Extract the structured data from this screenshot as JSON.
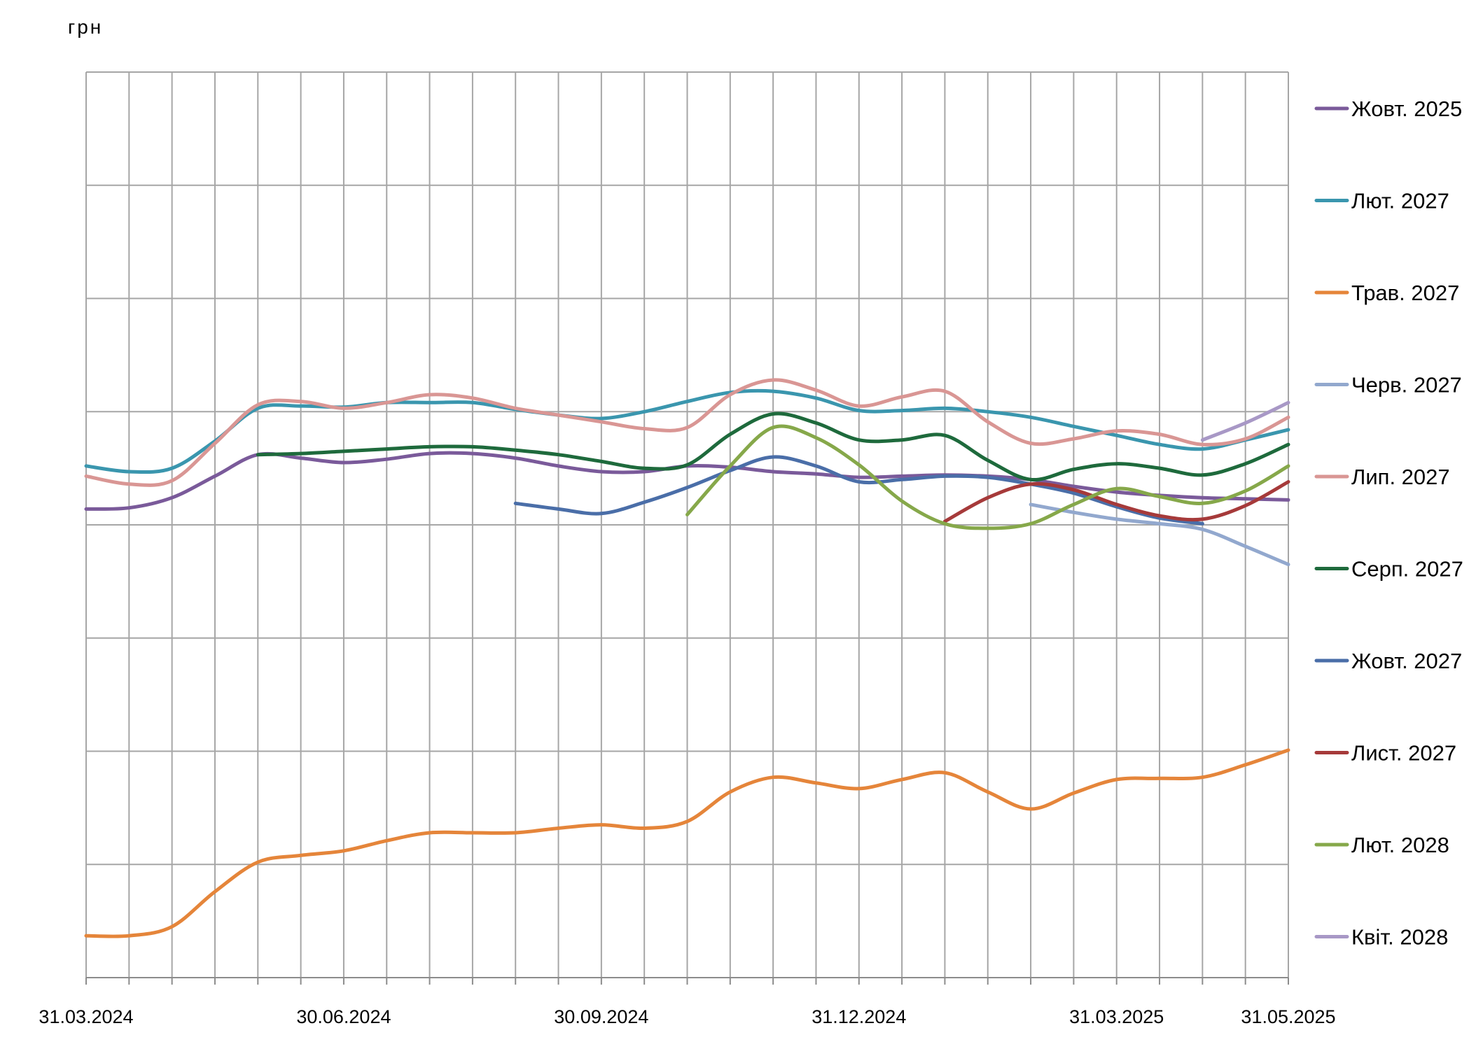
{
  "chart_data": {
    "type": "line",
    "ylabel": "грн",
    "xlabel": "",
    "title": "",
    "x_labels": [
      "31.03.2024",
      "30.06.2024",
      "30.09.2024",
      "31.12.2024",
      "31.03.2025",
      "31.05.2025"
    ],
    "x_label_indices": [
      0,
      6,
      12,
      18,
      24,
      28
    ],
    "x_start": "31.03.2024",
    "x_end": "31.05.2025",
    "x_step": "2 weeks",
    "ylim": [
      0,
      8
    ],
    "grid": true,
    "legend_position": "right",
    "series": [
      {
        "name": "Жовт. 2025",
        "color": "#7a5a9a",
        "points": [
          [
            0,
            4.14
          ],
          [
            1,
            4.15
          ],
          [
            2,
            4.24
          ],
          [
            3,
            4.43
          ],
          [
            4,
            4.62
          ],
          [
            5,
            4.59
          ],
          [
            6,
            4.55
          ],
          [
            7,
            4.58
          ],
          [
            8,
            4.63
          ],
          [
            9,
            4.63
          ],
          [
            10,
            4.59
          ],
          [
            11,
            4.52
          ],
          [
            12,
            4.47
          ],
          [
            13,
            4.47
          ],
          [
            14,
            4.52
          ],
          [
            15,
            4.51
          ],
          [
            16,
            4.47
          ],
          [
            17,
            4.45
          ],
          [
            18,
            4.42
          ],
          [
            19,
            4.43
          ],
          [
            20,
            4.44
          ],
          [
            21,
            4.43
          ],
          [
            22,
            4.4
          ],
          [
            23,
            4.34
          ],
          [
            24,
            4.29
          ],
          [
            25,
            4.26
          ],
          [
            26,
            4.24
          ],
          [
            27,
            4.23
          ],
          [
            28,
            4.22
          ]
        ]
      },
      {
        "name": "Лют. 2027",
        "color": "#3a96ae",
        "points": [
          [
            0,
            4.52
          ],
          [
            1,
            4.47
          ],
          [
            2,
            4.5
          ],
          [
            3,
            4.74
          ],
          [
            4,
            5.03
          ],
          [
            5,
            5.05
          ],
          [
            6,
            5.04
          ],
          [
            7,
            5.08
          ],
          [
            8,
            5.08
          ],
          [
            9,
            5.08
          ],
          [
            10,
            5.02
          ],
          [
            11,
            4.97
          ],
          [
            12,
            4.94
          ],
          [
            13,
            5.0
          ],
          [
            14,
            5.09
          ],
          [
            15,
            5.17
          ],
          [
            16,
            5.18
          ],
          [
            17,
            5.12
          ],
          [
            18,
            5.01
          ],
          [
            19,
            5.01
          ],
          [
            20,
            5.03
          ],
          [
            21,
            5.0
          ],
          [
            22,
            4.95
          ],
          [
            23,
            4.87
          ],
          [
            24,
            4.79
          ],
          [
            25,
            4.71
          ],
          [
            26,
            4.67
          ],
          [
            27,
            4.75
          ],
          [
            28,
            4.84
          ]
        ]
      },
      {
        "name": "Трав. 2027",
        "color": "#e5853a",
        "points": [
          [
            0,
            0.37
          ],
          [
            1,
            0.37
          ],
          [
            2,
            0.45
          ],
          [
            3,
            0.76
          ],
          [
            4,
            1.02
          ],
          [
            5,
            1.08
          ],
          [
            6,
            1.12
          ],
          [
            7,
            1.21
          ],
          [
            8,
            1.28
          ],
          [
            9,
            1.28
          ],
          [
            10,
            1.28
          ],
          [
            11,
            1.32
          ],
          [
            12,
            1.35
          ],
          [
            13,
            1.32
          ],
          [
            14,
            1.38
          ],
          [
            15,
            1.64
          ],
          [
            16,
            1.77
          ],
          [
            17,
            1.72
          ],
          [
            18,
            1.67
          ],
          [
            19,
            1.75
          ],
          [
            20,
            1.81
          ],
          [
            21,
            1.64
          ],
          [
            22,
            1.49
          ],
          [
            23,
            1.63
          ],
          [
            24,
            1.75
          ],
          [
            25,
            1.76
          ],
          [
            26,
            1.77
          ],
          [
            27,
            1.88
          ],
          [
            28,
            2.01
          ]
        ]
      },
      {
        "name": "Черв. 2027",
        "color": "#92a8ce",
        "points": [
          [
            22,
            4.18
          ],
          [
            23,
            4.11
          ],
          [
            24,
            4.05
          ],
          [
            25,
            4.01
          ],
          [
            26,
            3.96
          ],
          [
            27,
            3.81
          ],
          [
            28,
            3.65
          ]
        ]
      },
      {
        "name": "Лип. 2027",
        "color": "#d99694",
        "points": [
          [
            0,
            4.43
          ],
          [
            1,
            4.36
          ],
          [
            2,
            4.39
          ],
          [
            3,
            4.72
          ],
          [
            4,
            5.06
          ],
          [
            5,
            5.09
          ],
          [
            6,
            5.03
          ],
          [
            7,
            5.08
          ],
          [
            8,
            5.15
          ],
          [
            9,
            5.12
          ],
          [
            10,
            5.03
          ],
          [
            11,
            4.97
          ],
          [
            12,
            4.91
          ],
          [
            13,
            4.85
          ],
          [
            14,
            4.86
          ],
          [
            15,
            5.15
          ],
          [
            16,
            5.28
          ],
          [
            17,
            5.19
          ],
          [
            18,
            5.05
          ],
          [
            19,
            5.13
          ],
          [
            20,
            5.18
          ],
          [
            21,
            4.91
          ],
          [
            22,
            4.72
          ],
          [
            23,
            4.76
          ],
          [
            24,
            4.83
          ],
          [
            25,
            4.8
          ],
          [
            26,
            4.71
          ],
          [
            27,
            4.76
          ],
          [
            28,
            4.95
          ]
        ]
      },
      {
        "name": "Серп. 2027",
        "color": "#1e6a3c",
        "points": [
          [
            4,
            4.62
          ],
          [
            5,
            4.63
          ],
          [
            6,
            4.65
          ],
          [
            7,
            4.67
          ],
          [
            8,
            4.69
          ],
          [
            9,
            4.69
          ],
          [
            10,
            4.66
          ],
          [
            11,
            4.62
          ],
          [
            12,
            4.56
          ],
          [
            13,
            4.5
          ],
          [
            14,
            4.53
          ],
          [
            15,
            4.8
          ],
          [
            16,
            4.98
          ],
          [
            17,
            4.9
          ],
          [
            18,
            4.75
          ],
          [
            19,
            4.75
          ],
          [
            20,
            4.79
          ],
          [
            21,
            4.57
          ],
          [
            22,
            4.4
          ],
          [
            23,
            4.49
          ],
          [
            24,
            4.54
          ],
          [
            25,
            4.5
          ],
          [
            26,
            4.44
          ],
          [
            27,
            4.54
          ],
          [
            28,
            4.71
          ]
        ]
      },
      {
        "name": "Жовт. 2027",
        "color": "#4a6ea8",
        "points": [
          [
            10,
            4.19
          ],
          [
            11,
            4.14
          ],
          [
            12,
            4.1
          ],
          [
            13,
            4.2
          ],
          [
            14,
            4.33
          ],
          [
            15,
            4.48
          ],
          [
            16,
            4.6
          ],
          [
            17,
            4.52
          ],
          [
            18,
            4.38
          ],
          [
            19,
            4.4
          ],
          [
            20,
            4.43
          ],
          [
            21,
            4.42
          ],
          [
            22,
            4.36
          ],
          [
            23,
            4.28
          ],
          [
            24,
            4.16
          ],
          [
            25,
            4.06
          ],
          [
            26,
            4.01
          ]
        ]
      },
      {
        "name": "Лист. 2027",
        "color": "#a63a3a",
        "points": [
          [
            20,
            4.03
          ],
          [
            21,
            4.24
          ],
          [
            22,
            4.36
          ],
          [
            23,
            4.31
          ],
          [
            24,
            4.18
          ],
          [
            25,
            4.08
          ],
          [
            26,
            4.05
          ],
          [
            27,
            4.17
          ],
          [
            28,
            4.38
          ]
        ]
      },
      {
        "name": "Лют. 2028",
        "color": "#86a84a",
        "points": [
          [
            14,
            4.09
          ],
          [
            15,
            4.52
          ],
          [
            16,
            4.86
          ],
          [
            17,
            4.77
          ],
          [
            18,
            4.53
          ],
          [
            19,
            4.21
          ],
          [
            20,
            4.01
          ],
          [
            21,
            3.97
          ],
          [
            22,
            4.01
          ],
          [
            23,
            4.18
          ],
          [
            24,
            4.32
          ],
          [
            25,
            4.25
          ],
          [
            26,
            4.19
          ],
          [
            27,
            4.3
          ],
          [
            28,
            4.52
          ]
        ]
      },
      {
        "name": "Квіт. 2028",
        "color": "#a898c6",
        "points": [
          [
            26,
            4.75
          ],
          [
            27,
            4.9
          ],
          [
            28,
            5.08
          ]
        ]
      }
    ]
  }
}
